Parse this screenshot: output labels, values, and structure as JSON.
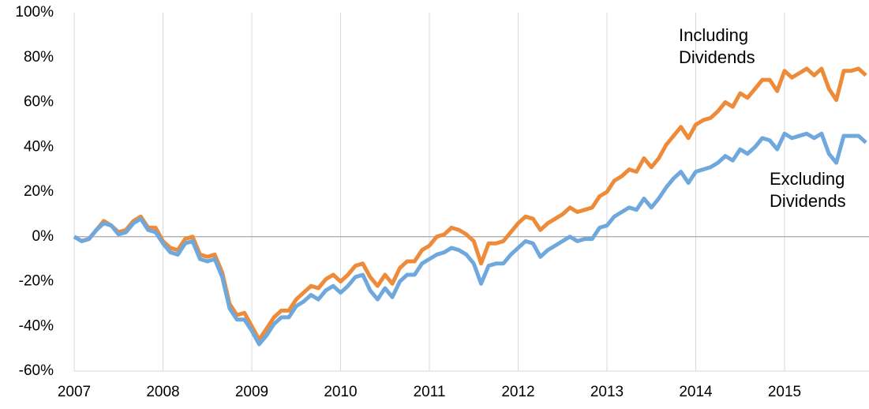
{
  "chart_data": {
    "type": "line",
    "x": [
      2007,
      2007.083,
      2007.167,
      2007.25,
      2007.333,
      2007.417,
      2007.5,
      2007.583,
      2007.667,
      2007.75,
      2007.833,
      2007.917,
      2008,
      2008.083,
      2008.167,
      2008.25,
      2008.333,
      2008.417,
      2008.5,
      2008.583,
      2008.667,
      2008.75,
      2008.833,
      2008.917,
      2009,
      2009.083,
      2009.167,
      2009.25,
      2009.333,
      2009.417,
      2009.5,
      2009.583,
      2009.667,
      2009.75,
      2009.833,
      2009.917,
      2010,
      2010.083,
      2010.167,
      2010.25,
      2010.333,
      2010.417,
      2010.5,
      2010.583,
      2010.667,
      2010.75,
      2010.833,
      2010.917,
      2011,
      2011.083,
      2011.167,
      2011.25,
      2011.333,
      2011.417,
      2011.5,
      2011.583,
      2011.667,
      2011.75,
      2011.833,
      2011.917,
      2012,
      2012.083,
      2012.167,
      2012.25,
      2012.333,
      2012.417,
      2012.5,
      2012.583,
      2012.667,
      2012.75,
      2012.833,
      2012.917,
      2013,
      2013.083,
      2013.167,
      2013.25,
      2013.333,
      2013.417,
      2013.5,
      2013.583,
      2013.667,
      2013.75,
      2013.833,
      2013.917,
      2014,
      2014.083,
      2014.167,
      2014.25,
      2014.333,
      2014.417,
      2014.5,
      2014.583,
      2014.667,
      2014.75,
      2014.833,
      2014.917,
      2015,
      2015.083,
      2015.167,
      2015.25,
      2015.333,
      2015.417,
      2015.5,
      2015.583,
      2015.667,
      2015.75,
      2015.833,
      2015.917
    ],
    "series": [
      {
        "name": "Including Dividends",
        "color": "#ED8B3A",
        "values": [
          0,
          -2,
          -1,
          3,
          7,
          5,
          2,
          3,
          7,
          9,
          4,
          4,
          -2,
          -5,
          -6,
          -1,
          0,
          -8,
          -9,
          -8,
          -16,
          -30,
          -35,
          -34,
          -40,
          -46,
          -41,
          -36,
          -33,
          -33,
          -28,
          -25,
          -22,
          -23,
          -19,
          -17,
          -20,
          -17,
          -13,
          -12,
          -18,
          -22,
          -17,
          -21,
          -14,
          -11,
          -11,
          -6,
          -4,
          0,
          1,
          4,
          3,
          1,
          -2,
          -12,
          -3,
          -3,
          -2,
          2,
          6,
          9,
          8,
          3,
          6,
          8,
          10,
          13,
          11,
          12,
          13,
          18,
          20,
          25,
          27,
          30,
          29,
          35,
          31,
          35,
          41,
          45,
          49,
          44,
          50,
          52,
          53,
          56,
          60,
          58,
          64,
          62,
          66,
          70,
          70,
          65,
          74,
          71,
          73,
          75,
          72,
          75,
          66,
          61,
          74,
          74,
          75,
          72
        ]
      },
      {
        "name": "Excluding Dividends",
        "color": "#6FA8DC",
        "values": [
          0,
          -2,
          -1,
          3,
          6,
          5,
          1,
          2,
          6,
          8,
          3,
          2,
          -3,
          -7,
          -8,
          -3,
          -2,
          -10,
          -11,
          -10,
          -18,
          -32,
          -37,
          -37,
          -42,
          -48,
          -44,
          -39,
          -36,
          -36,
          -31,
          -29,
          -26,
          -28,
          -24,
          -22,
          -25,
          -22,
          -18,
          -17,
          -24,
          -28,
          -23,
          -27,
          -20,
          -17,
          -17,
          -12,
          -10,
          -8,
          -7,
          -5,
          -6,
          -8,
          -12,
          -21,
          -13,
          -12,
          -12,
          -8,
          -5,
          -2,
          -3,
          -9,
          -6,
          -4,
          -2,
          0,
          -2,
          -1,
          -1,
          4,
          5,
          9,
          11,
          13,
          12,
          17,
          13,
          17,
          22,
          26,
          29,
          24,
          29,
          30,
          31,
          33,
          36,
          34,
          39,
          37,
          40,
          44,
          43,
          39,
          46,
          44,
          45,
          46,
          44,
          46,
          37,
          33,
          45,
          45,
          45,
          42
        ]
      }
    ],
    "xlim": [
      2007,
      2016
    ],
    "xticks": [
      2007,
      2008,
      2009,
      2010,
      2011,
      2012,
      2013,
      2014,
      2015
    ],
    "ylim": [
      -60,
      100
    ],
    "yticks": [
      {
        "value": -60,
        "label": "-60%"
      },
      {
        "value": -40,
        "label": "-40%"
      },
      {
        "value": -20,
        "label": "-20%"
      },
      {
        "value": 0,
        "label": "0%"
      },
      {
        "value": 20,
        "label": "20%"
      },
      {
        "value": 40,
        "label": "40%"
      },
      {
        "value": 60,
        "label": "60%"
      },
      {
        "value": 80,
        "label": "80%"
      },
      {
        "value": 100,
        "label": "100%"
      }
    ],
    "grid": true
  }
}
